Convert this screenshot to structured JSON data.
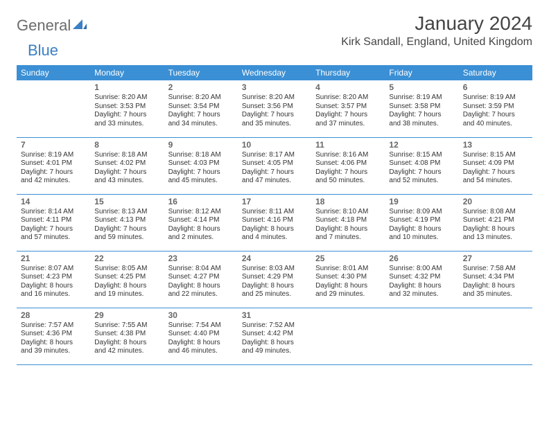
{
  "logo": {
    "part1": "General",
    "part2": "Blue"
  },
  "title": "January 2024",
  "location": "Kirk Sandall, England, United Kingdom",
  "colors": {
    "header_bg": "#3b8fd4",
    "header_text": "#ffffff",
    "row_border": "#3b8fd4",
    "logo_gray": "#6b6b6b",
    "logo_blue": "#3b7fc4",
    "text": "#333333",
    "daynum": "#666666",
    "background": "#ffffff"
  },
  "day_headers": [
    "Sunday",
    "Monday",
    "Tuesday",
    "Wednesday",
    "Thursday",
    "Friday",
    "Saturday"
  ],
  "weeks": [
    [
      null,
      {
        "n": "1",
        "sr": "8:20 AM",
        "ss": "3:53 PM",
        "dl": "Daylight: 7 hours and 33 minutes."
      },
      {
        "n": "2",
        "sr": "8:20 AM",
        "ss": "3:54 PM",
        "dl": "Daylight: 7 hours and 34 minutes."
      },
      {
        "n": "3",
        "sr": "8:20 AM",
        "ss": "3:56 PM",
        "dl": "Daylight: 7 hours and 35 minutes."
      },
      {
        "n": "4",
        "sr": "8:20 AM",
        "ss": "3:57 PM",
        "dl": "Daylight: 7 hours and 37 minutes."
      },
      {
        "n": "5",
        "sr": "8:19 AM",
        "ss": "3:58 PM",
        "dl": "Daylight: 7 hours and 38 minutes."
      },
      {
        "n": "6",
        "sr": "8:19 AM",
        "ss": "3:59 PM",
        "dl": "Daylight: 7 hours and 40 minutes."
      }
    ],
    [
      {
        "n": "7",
        "sr": "8:19 AM",
        "ss": "4:01 PM",
        "dl": "Daylight: 7 hours and 42 minutes."
      },
      {
        "n": "8",
        "sr": "8:18 AM",
        "ss": "4:02 PM",
        "dl": "Daylight: 7 hours and 43 minutes."
      },
      {
        "n": "9",
        "sr": "8:18 AM",
        "ss": "4:03 PM",
        "dl": "Daylight: 7 hours and 45 minutes."
      },
      {
        "n": "10",
        "sr": "8:17 AM",
        "ss": "4:05 PM",
        "dl": "Daylight: 7 hours and 47 minutes."
      },
      {
        "n": "11",
        "sr": "8:16 AM",
        "ss": "4:06 PM",
        "dl": "Daylight: 7 hours and 50 minutes."
      },
      {
        "n": "12",
        "sr": "8:15 AM",
        "ss": "4:08 PM",
        "dl": "Daylight: 7 hours and 52 minutes."
      },
      {
        "n": "13",
        "sr": "8:15 AM",
        "ss": "4:09 PM",
        "dl": "Daylight: 7 hours and 54 minutes."
      }
    ],
    [
      {
        "n": "14",
        "sr": "8:14 AM",
        "ss": "4:11 PM",
        "dl": "Daylight: 7 hours and 57 minutes."
      },
      {
        "n": "15",
        "sr": "8:13 AM",
        "ss": "4:13 PM",
        "dl": "Daylight: 7 hours and 59 minutes."
      },
      {
        "n": "16",
        "sr": "8:12 AM",
        "ss": "4:14 PM",
        "dl": "Daylight: 8 hours and 2 minutes."
      },
      {
        "n": "17",
        "sr": "8:11 AM",
        "ss": "4:16 PM",
        "dl": "Daylight: 8 hours and 4 minutes."
      },
      {
        "n": "18",
        "sr": "8:10 AM",
        "ss": "4:18 PM",
        "dl": "Daylight: 8 hours and 7 minutes."
      },
      {
        "n": "19",
        "sr": "8:09 AM",
        "ss": "4:19 PM",
        "dl": "Daylight: 8 hours and 10 minutes."
      },
      {
        "n": "20",
        "sr": "8:08 AM",
        "ss": "4:21 PM",
        "dl": "Daylight: 8 hours and 13 minutes."
      }
    ],
    [
      {
        "n": "21",
        "sr": "8:07 AM",
        "ss": "4:23 PM",
        "dl": "Daylight: 8 hours and 16 minutes."
      },
      {
        "n": "22",
        "sr": "8:05 AM",
        "ss": "4:25 PM",
        "dl": "Daylight: 8 hours and 19 minutes."
      },
      {
        "n": "23",
        "sr": "8:04 AM",
        "ss": "4:27 PM",
        "dl": "Daylight: 8 hours and 22 minutes."
      },
      {
        "n": "24",
        "sr": "8:03 AM",
        "ss": "4:29 PM",
        "dl": "Daylight: 8 hours and 25 minutes."
      },
      {
        "n": "25",
        "sr": "8:01 AM",
        "ss": "4:30 PM",
        "dl": "Daylight: 8 hours and 29 minutes."
      },
      {
        "n": "26",
        "sr": "8:00 AM",
        "ss": "4:32 PM",
        "dl": "Daylight: 8 hours and 32 minutes."
      },
      {
        "n": "27",
        "sr": "7:58 AM",
        "ss": "4:34 PM",
        "dl": "Daylight: 8 hours and 35 minutes."
      }
    ],
    [
      {
        "n": "28",
        "sr": "7:57 AM",
        "ss": "4:36 PM",
        "dl": "Daylight: 8 hours and 39 minutes."
      },
      {
        "n": "29",
        "sr": "7:55 AM",
        "ss": "4:38 PM",
        "dl": "Daylight: 8 hours and 42 minutes."
      },
      {
        "n": "30",
        "sr": "7:54 AM",
        "ss": "4:40 PM",
        "dl": "Daylight: 8 hours and 46 minutes."
      },
      {
        "n": "31",
        "sr": "7:52 AM",
        "ss": "4:42 PM",
        "dl": "Daylight: 8 hours and 49 minutes."
      },
      null,
      null,
      null
    ]
  ],
  "labels": {
    "sunrise": "Sunrise: ",
    "sunset": "Sunset: "
  }
}
